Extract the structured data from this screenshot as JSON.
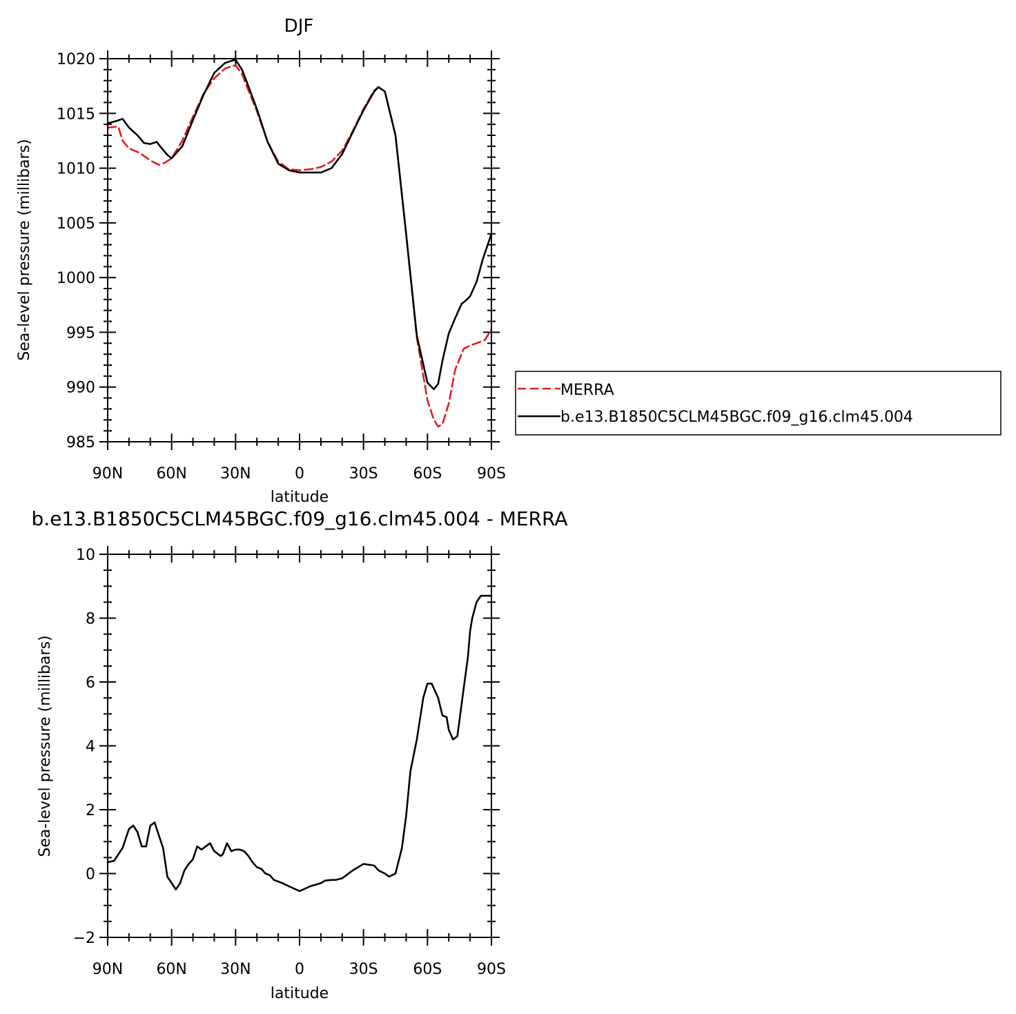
{
  "chart_data": [
    {
      "type": "line",
      "title": "DJF",
      "xlabel": "latitude",
      "ylabel": "Sea-level pressure (millibars)",
      "xlim": [
        90,
        -90
      ],
      "ylim": [
        985,
        1020
      ],
      "x_tick_values": [
        90,
        60,
        30,
        0,
        -30,
        -60,
        -90
      ],
      "x_tick_labels": [
        "90N",
        "60N",
        "30N",
        "0",
        "30S",
        "60S",
        "90S"
      ],
      "y_tick_values": [
        985,
        990,
        995,
        1000,
        1005,
        1010,
        1015,
        1020
      ],
      "y_tick_labels": [
        "985",
        "990",
        "995",
        "1000",
        "1005",
        "1010",
        "1015",
        "1020"
      ],
      "legend_position": "right",
      "series": [
        {
          "name": "MERRA",
          "color": "#e41a1c",
          "dash": "dashed",
          "x": [
            90,
            85,
            83,
            80,
            75,
            70,
            66,
            63,
            60,
            55,
            50,
            45,
            40,
            35,
            30,
            27,
            25,
            20,
            15,
            10,
            5,
            0,
            -5,
            -10,
            -15,
            -20,
            -25,
            -30,
            -35,
            -37,
            -40,
            -45,
            -50,
            -55,
            -60,
            -63,
            -65,
            -67,
            -70,
            -73,
            -77,
            -80,
            -83,
            -87,
            -90
          ],
          "y": [
            1013.7,
            1013.8,
            1012.5,
            1011.8,
            1011.4,
            1010.7,
            1010.3,
            1010.5,
            1010.9,
            1012.5,
            1014.7,
            1016.8,
            1018.2,
            1019.1,
            1019.4,
            1018.6,
            1017.6,
            1015.2,
            1012.4,
            1010.6,
            1009.9,
            1009.8,
            1009.9,
            1010.1,
            1010.6,
            1011.6,
            1013.4,
            1015.4,
            1017.1,
            1017.4,
            1017.0,
            1013.0,
            1004.0,
            994.5,
            988.8,
            987.0,
            986.4,
            986.6,
            988.5,
            991.6,
            993.5,
            993.8,
            994.0,
            994.3,
            995.3
          ]
        },
        {
          "name": "b.e13.B1850C5CLM45BGC.f09_g16.clm45.004",
          "color": "#000000",
          "dash": "solid",
          "x": [
            90,
            86,
            83,
            80,
            76,
            73,
            70,
            67,
            65,
            62,
            60,
            55,
            50,
            45,
            40,
            35,
            32,
            30,
            27,
            25,
            20,
            15,
            10,
            5,
            0,
            -5,
            -10,
            -15,
            -20,
            -25,
            -30,
            -35,
            -37,
            -40,
            -45,
            -50,
            -55,
            -60,
            -63,
            -65,
            -67,
            -70,
            -73,
            -76,
            -78,
            -80,
            -83,
            -86,
            -90
          ],
          "y": [
            1014.1,
            1014.3,
            1014.5,
            1013.7,
            1013.0,
            1012.3,
            1012.2,
            1012.4,
            1011.9,
            1011.2,
            1010.9,
            1012.0,
            1014.4,
            1016.7,
            1018.7,
            1019.6,
            1019.8,
            1019.9,
            1019.0,
            1018.0,
            1015.4,
            1012.4,
            1010.4,
            1009.8,
            1009.6,
            1009.6,
            1009.6,
            1010.0,
            1011.3,
            1013.3,
            1015.3,
            1017.0,
            1017.4,
            1017.0,
            1013.0,
            1004.0,
            994.7,
            990.4,
            989.8,
            990.3,
            992.4,
            994.9,
            996.3,
            997.6,
            997.9,
            998.3,
            999.6,
            1001.7,
            1004.0
          ]
        }
      ]
    },
    {
      "type": "line",
      "title": "b.e13.B1850C5CLM45BGC.f09_g16.clm45.004 - MERRA",
      "xlabel": "latitude",
      "ylabel": "Sea-level pressure (millibars)",
      "xlim": [
        90,
        -90
      ],
      "ylim": [
        -2,
        10
      ],
      "x_tick_values": [
        90,
        60,
        30,
        0,
        -30,
        -60,
        -90
      ],
      "x_tick_labels": [
        "90N",
        "60N",
        "30N",
        "0",
        "30S",
        "60S",
        "90S"
      ],
      "y_tick_values": [
        -2,
        0,
        2,
        4,
        6,
        8,
        10
      ],
      "y_tick_labels": [
        "−2",
        "0",
        "2",
        "4",
        "6",
        "8",
        "10"
      ],
      "series": [
        {
          "color": "#000000",
          "dash": "solid",
          "x": [
            90,
            87,
            85,
            83,
            80,
            78,
            76,
            74,
            72,
            70,
            68,
            66,
            64,
            62,
            60,
            58,
            56,
            54,
            52,
            50,
            48,
            46,
            44,
            42,
            40,
            39,
            38,
            37,
            36,
            34,
            32,
            30,
            28,
            26,
            24,
            22,
            20,
            18,
            16,
            14,
            12,
            10,
            8,
            5,
            0,
            -5,
            -10,
            -12,
            -15,
            -17,
            -20,
            -25,
            -30,
            -35,
            -37,
            -40,
            -42,
            -45,
            -48,
            -50,
            -52,
            -55,
            -58,
            -60,
            -62,
            -65,
            -67,
            -69,
            -70,
            -72,
            -74,
            -75,
            -77,
            -79,
            -80,
            -81,
            -83,
            -85,
            -87,
            -89,
            -90
          ],
          "y": [
            0.35,
            0.4,
            0.6,
            0.8,
            1.4,
            1.5,
            1.3,
            0.85,
            0.85,
            1.5,
            1.6,
            1.2,
            0.8,
            -0.1,
            -0.3,
            -0.5,
            -0.3,
            0.1,
            0.3,
            0.45,
            0.85,
            0.75,
            0.85,
            0.95,
            0.7,
            0.65,
            0.6,
            0.55,
            0.6,
            0.95,
            0.7,
            0.75,
            0.75,
            0.7,
            0.55,
            0.35,
            0.2,
            0.15,
            0.0,
            -0.05,
            -0.2,
            -0.25,
            -0.3,
            -0.4,
            -0.55,
            -0.4,
            -0.3,
            -0.22,
            -0.2,
            -0.2,
            -0.15,
            0.1,
            0.3,
            0.25,
            0.1,
            0.0,
            -0.1,
            0.0,
            0.8,
            1.8,
            3.2,
            4.2,
            5.5,
            5.95,
            5.95,
            5.5,
            4.95,
            4.9,
            4.5,
            4.2,
            4.3,
            4.8,
            5.8,
            6.8,
            7.6,
            8.0,
            8.5,
            8.7,
            8.7,
            8.7,
            8.7
          ]
        }
      ]
    }
  ]
}
